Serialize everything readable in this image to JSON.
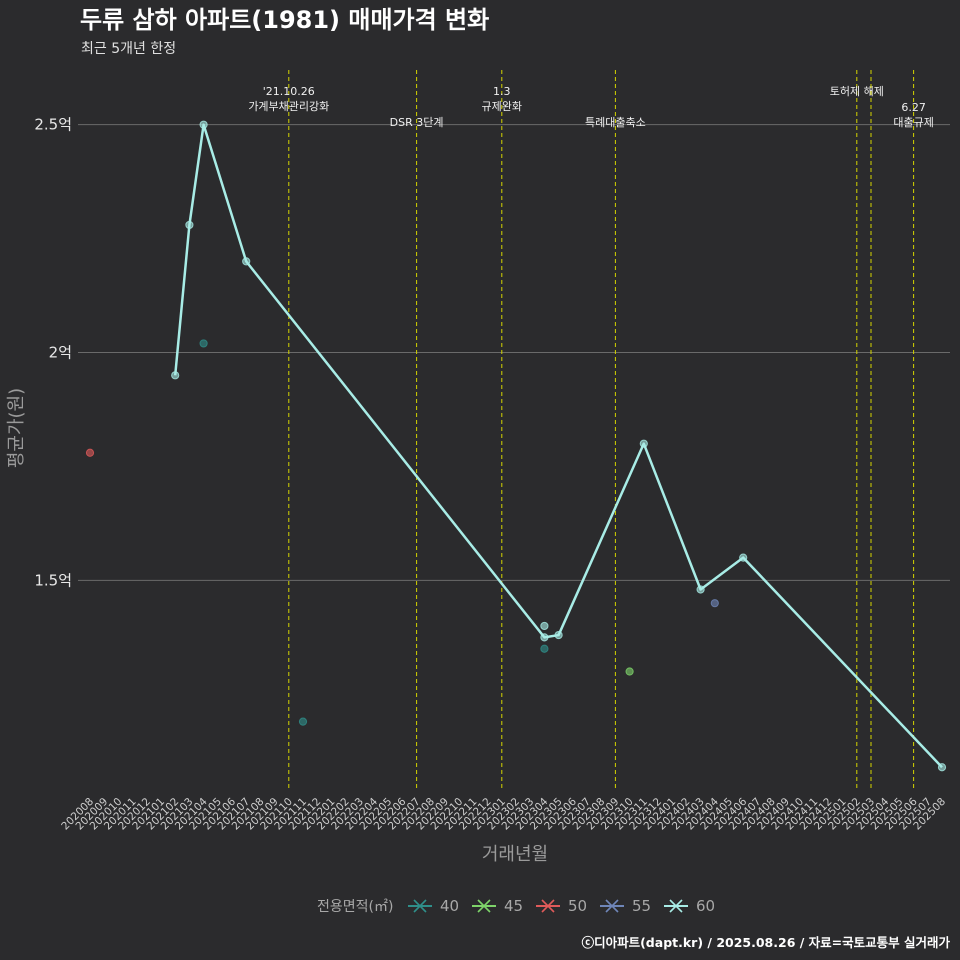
{
  "title": "두류 삼하 아파트(1981) 매매가격 변화",
  "subtitle": "최근 5개년 한정",
  "caption": "ⓒ디아파트(dapt.kr) / 2025.08.26 / 자료=국토교통부 실거래가",
  "colors": {
    "background": "#2b2b2d",
    "grid": "#6a6a6a",
    "event_line": "#d4d400",
    "series": {
      "40": "#2f8f8a",
      "45": "#7ed46a",
      "50": "#e05a5a",
      "55": "#6f86b8",
      "60": "#a8ece6"
    }
  },
  "chart_data": {
    "type": "line",
    "xlabel": "거래년월",
    "ylabel": "평균가(원)",
    "ylim_label_ticks": [
      {
        "value": 1.5,
        "label": "1.5억"
      },
      {
        "value": 2.0,
        "label": "2억"
      },
      {
        "value": 2.5,
        "label": "2.5억"
      }
    ],
    "ylim": [
      1.04,
      2.62
    ],
    "y_unit": "억원",
    "grid": "horizontal",
    "legend_title": "전용면적(㎡)",
    "legend_position": "bottom",
    "x_categories": [
      "202008",
      "202009",
      "202010",
      "202011",
      "202012",
      "202101",
      "202102",
      "202103",
      "202104",
      "202105",
      "202106",
      "202107",
      "202108",
      "202109",
      "202110",
      "202111",
      "202112",
      "202201",
      "202202",
      "202203",
      "202204",
      "202205",
      "202206",
      "202207",
      "202208",
      "202209",
      "202210",
      "202211",
      "202212",
      "202301",
      "202302",
      "202303",
      "202304",
      "202305",
      "202306",
      "202307",
      "202308",
      "202309",
      "202310",
      "202311",
      "202312",
      "202401",
      "202402",
      "202403",
      "202404",
      "202405",
      "202406",
      "202407",
      "202408",
      "202409",
      "202410",
      "202411",
      "202412",
      "202501",
      "202502",
      "202503",
      "202504",
      "202505",
      "202506",
      "202507",
      "202508"
    ],
    "series": [
      {
        "name": "40",
        "points": [
          {
            "x": "202104",
            "y": 2.02
          },
          {
            "x": "202111",
            "y": 1.19
          },
          {
            "x": "202304",
            "y": 1.35
          }
        ]
      },
      {
        "name": "45",
        "points": [
          {
            "x": "202310",
            "y": 1.3
          }
        ]
      },
      {
        "name": "50",
        "points": [
          {
            "x": "202008",
            "y": 1.78
          }
        ]
      },
      {
        "name": "55",
        "points": [
          {
            "x": "202404",
            "y": 1.45
          }
        ]
      },
      {
        "name": "60",
        "line": true,
        "points": [
          {
            "x": "202102",
            "y": 1.95
          },
          {
            "x": "202103",
            "y": 2.28
          },
          {
            "x": "202104",
            "y": 2.5
          },
          {
            "x": "202107",
            "y": 2.2
          },
          {
            "x": "202304",
            "y": 1.375
          },
          {
            "x": "202305",
            "y": 1.38
          },
          {
            "x": "202311",
            "y": 1.8
          },
          {
            "x": "202403",
            "y": 1.48
          },
          {
            "x": "202406",
            "y": 1.55
          },
          {
            "x": "202508",
            "y": 1.09
          }
        ],
        "extra_points": [
          {
            "x": "202304",
            "y": 1.4
          }
        ]
      }
    ],
    "events": [
      {
        "x": "202110",
        "lines": [
          "'21.10.26",
          "가계부채관리강화"
        ],
        "top": true
      },
      {
        "x": "202207",
        "lines": [
          "DSR 3단계"
        ],
        "top": false
      },
      {
        "x": "202301",
        "lines": [
          "1.3",
          "규제완화"
        ],
        "top": true
      },
      {
        "x": "202309",
        "lines": [
          "특례대출축소"
        ],
        "top": false
      },
      {
        "x": "202502",
        "lines": [
          "토허제 해제"
        ],
        "top": true
      },
      {
        "x": "202503",
        "lines": [],
        "top": true
      },
      {
        "x": "202506",
        "lines": [
          "6.27",
          "대출규제"
        ],
        "top": false
      }
    ]
  }
}
